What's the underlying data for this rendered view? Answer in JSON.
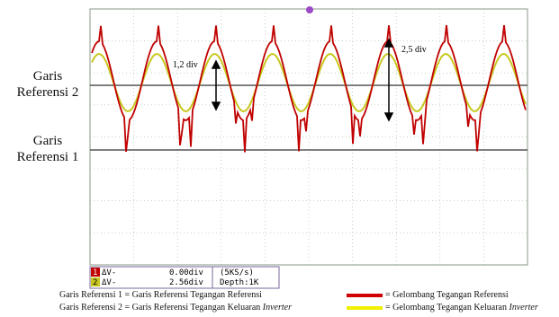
{
  "labels": {
    "ref2": "Garis Referensi 2",
    "ref1": "Garis Referensi 1"
  },
  "annotations": {
    "small": "1,2 div",
    "large": "2,5 div"
  },
  "readout": {
    "ch1": "1",
    "dv1": "ΔV-",
    "val1": "0.00div",
    "ch2": "2",
    "dv2": "ΔV-",
    "val2": "2.56div",
    "rate": "(5KS/s)",
    "depth": "Depth:1K"
  },
  "notes": {
    "line1": "Garis Referensi 1 = Garis Referensi Tegangan Referensi",
    "line2": "Garis Referensi 2 = Garis Referensi Tegangan Keluaran ",
    "line2_italic": "Inverter"
  },
  "legend": {
    "red": "= Gelombang Tegangan Referensi",
    "yellow_text": "= Gelombang Tegangan Keluaran ",
    "yellow_italic": "Inverter"
  }
}
